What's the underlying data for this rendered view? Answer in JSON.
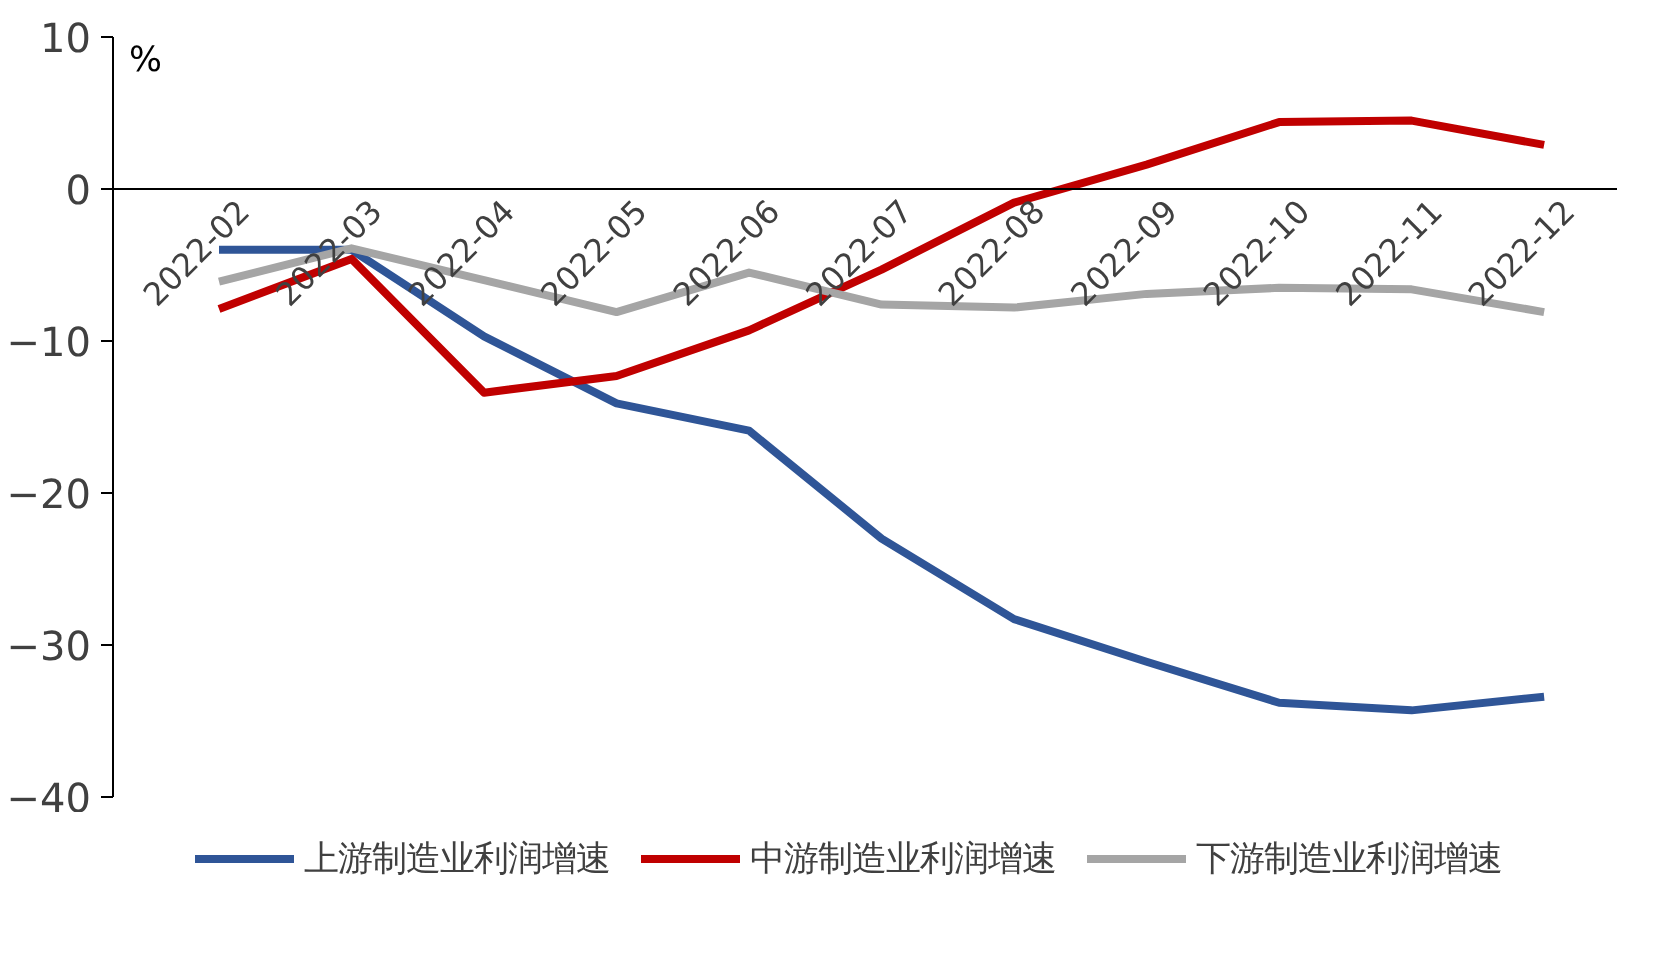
{
  "chart_data": {
    "type": "line",
    "ylabel": "%",
    "categories": [
      "2022-02",
      "2022-03",
      "2022-04",
      "2022-05",
      "2022-06",
      "2022-07",
      "2022-08",
      "2022-09",
      "2022-10",
      "2022-11",
      "2022-12"
    ],
    "series": [
      {
        "name": "上游制造业利润增速",
        "color": "#2f5597",
        "values": [
          -4.0,
          -4.0,
          -9.7,
          -14.1,
          -15.9,
          -23.0,
          -28.3,
          -31.1,
          -33.8,
          -34.3,
          -33.4
        ]
      },
      {
        "name": "中游制造业利润增速",
        "color": "#c00000",
        "values": [
          -7.9,
          -4.6,
          -13.4,
          -12.3,
          -9.3,
          -5.3,
          -0.9,
          1.6,
          4.4,
          4.5,
          2.9
        ]
      },
      {
        "name": "下游制造业利润增速",
        "color": "#a5a5a5",
        "values": [
          -6.1,
          -3.9,
          -6.0,
          -8.1,
          -5.5,
          -7.6,
          -7.8,
          -6.9,
          -6.5,
          -6.6,
          -8.1
        ]
      }
    ],
    "ylim": [
      -40,
      10
    ],
    "yticks": [
      -40,
      -30,
      -20,
      -10,
      0,
      10
    ],
    "grid": false,
    "legend": "bottom",
    "line_style": "solid",
    "marker": "none"
  }
}
